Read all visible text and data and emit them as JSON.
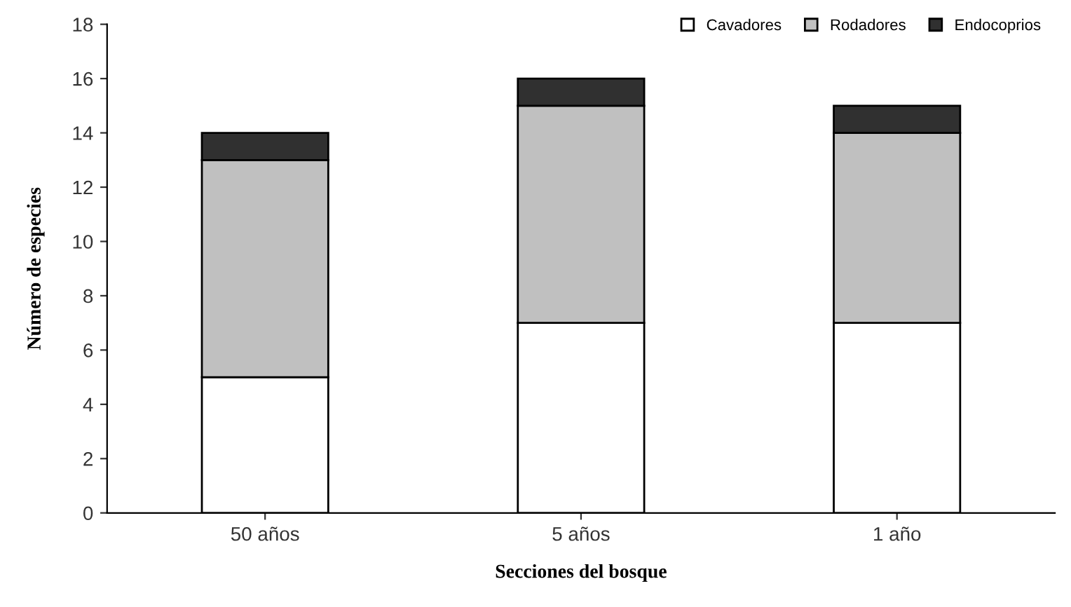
{
  "chart_data": {
    "type": "bar",
    "stacked": true,
    "xlabel": "Secciones del bosque",
    "ylabel": "Número de especies",
    "categories": [
      "50 años",
      "5 años",
      "1 año"
    ],
    "series": [
      {
        "name": "Cavadores",
        "color": "#ffffff",
        "values": [
          5,
          7,
          7
        ]
      },
      {
        "name": "Rodadores",
        "color": "#c0c0c0",
        "values": [
          8,
          8,
          7
        ]
      },
      {
        "name": "Endocoprios",
        "color": "#303030",
        "values": [
          1,
          1,
          1
        ]
      }
    ],
    "ylim": [
      0,
      18
    ],
    "yticks": [
      0,
      2,
      4,
      6,
      8,
      10,
      12,
      14,
      16,
      18
    ],
    "grid": false,
    "legend": "top right"
  }
}
